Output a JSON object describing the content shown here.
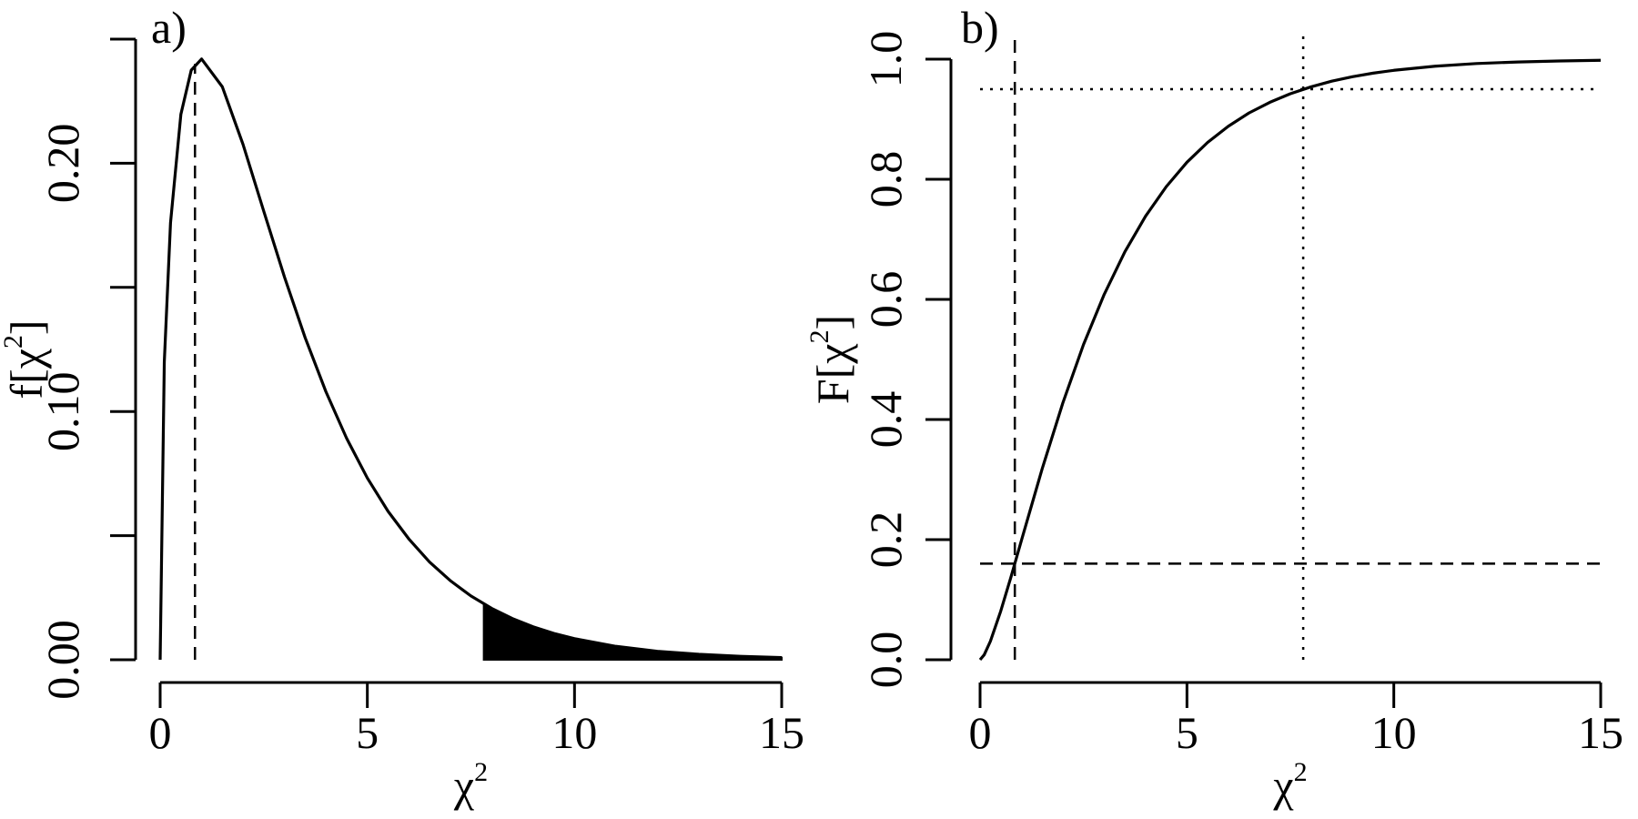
{
  "chart_data": [
    {
      "type": "line",
      "panel_label": "a)",
      "xlabel": [
        "χ",
        "2"
      ],
      "ylabel": [
        "f[χ",
        "2",
        "]"
      ],
      "x": [
        0,
        0.1,
        0.25,
        0.5,
        0.75,
        1,
        1.5,
        2,
        2.5,
        3,
        3.5,
        4,
        4.5,
        5,
        5.5,
        6,
        6.5,
        7,
        7.5,
        8,
        8.5,
        9,
        9.5,
        10,
        11,
        12,
        13,
        14,
        15
      ],
      "series": [
        {
          "color": "#000000",
          "values": [
            0,
            0.12,
            0.176,
            0.2197,
            0.2375,
            0.242,
            0.2308,
            0.2076,
            0.1807,
            0.1542,
            0.1297,
            0.108,
            0.0892,
            0.0732,
            0.0598,
            0.0487,
            0.0394,
            0.0319,
            0.0257,
            0.0207,
            0.0166,
            0.0133,
            0.0106,
            0.0085,
            0.0054,
            0.0034,
            0.0022,
            0.0014,
            0.0009
          ]
        }
      ],
      "shaded_region": {
        "color": "#000000",
        "x": [
          7.81,
          8,
          8.5,
          9,
          9.5,
          10,
          11,
          12,
          13,
          14,
          15
        ],
        "values": [
          0.0225,
          0.0207,
          0.0166,
          0.0133,
          0.0106,
          0.0085,
          0.0054,
          0.0034,
          0.0022,
          0.0014,
          0.0009
        ]
      },
      "vlines": [
        {
          "x": 0.84,
          "ymax": 0.24,
          "style": "dashed"
        }
      ],
      "hlines": [],
      "xlim": [
        0,
        15
      ],
      "xticks": [
        0,
        5,
        10,
        15
      ],
      "ylim": [
        0,
        0.25
      ],
      "yticks": [
        {
          "value": 0,
          "label": "0.00"
        },
        {
          "value": 0.05,
          "label": null
        },
        {
          "value": 0.1,
          "label": "0.10"
        },
        {
          "value": 0.15,
          "label": null
        },
        {
          "value": 0.2,
          "label": "0.20"
        },
        {
          "value": 0.25,
          "label": null
        }
      ]
    },
    {
      "type": "line",
      "panel_label": "b)",
      "xlabel": [
        "χ",
        "2"
      ],
      "ylabel": [
        "F[χ",
        "2",
        "]"
      ],
      "x": [
        0,
        0.1,
        0.25,
        0.5,
        0.75,
        1,
        1.5,
        2,
        2.5,
        3,
        3.5,
        4,
        4.5,
        5,
        5.5,
        6,
        6.5,
        7,
        7.5,
        8,
        8.5,
        9,
        9.5,
        10,
        11,
        12,
        13,
        14,
        15
      ],
      "series": [
        {
          "color": "#000000",
          "values": [
            0,
            0.0082,
            0.0309,
            0.0811,
            0.1385,
            0.1987,
            0.3177,
            0.4275,
            0.5248,
            0.6083,
            0.6792,
            0.7385,
            0.7877,
            0.8283,
            0.8614,
            0.8883,
            0.9104,
            0.928,
            0.9424,
            0.9539,
            0.9633,
            0.9707,
            0.9767,
            0.9814,
            0.9883,
            0.9927,
            0.9953,
            0.997,
            0.9981
          ]
        }
      ],
      "vlines": [
        {
          "x": 0.84,
          "style": "dashed"
        },
        {
          "x": 7.81,
          "style": "dotted"
        }
      ],
      "hlines": [
        {
          "y": 0.16,
          "style": "dashed"
        },
        {
          "y": 0.95,
          "style": "dotted"
        }
      ],
      "xlim": [
        0,
        15
      ],
      "xticks": [
        0,
        5,
        10,
        15
      ],
      "ylim": [
        0,
        1
      ],
      "yticks": [
        {
          "value": 0,
          "label": "0.0"
        },
        {
          "value": 0.2,
          "label": "0.2"
        },
        {
          "value": 0.4,
          "label": "0.4"
        },
        {
          "value": 0.6,
          "label": "0.6"
        },
        {
          "value": 0.8,
          "label": "0.8"
        },
        {
          "value": 1,
          "label": "1.0"
        }
      ]
    }
  ]
}
